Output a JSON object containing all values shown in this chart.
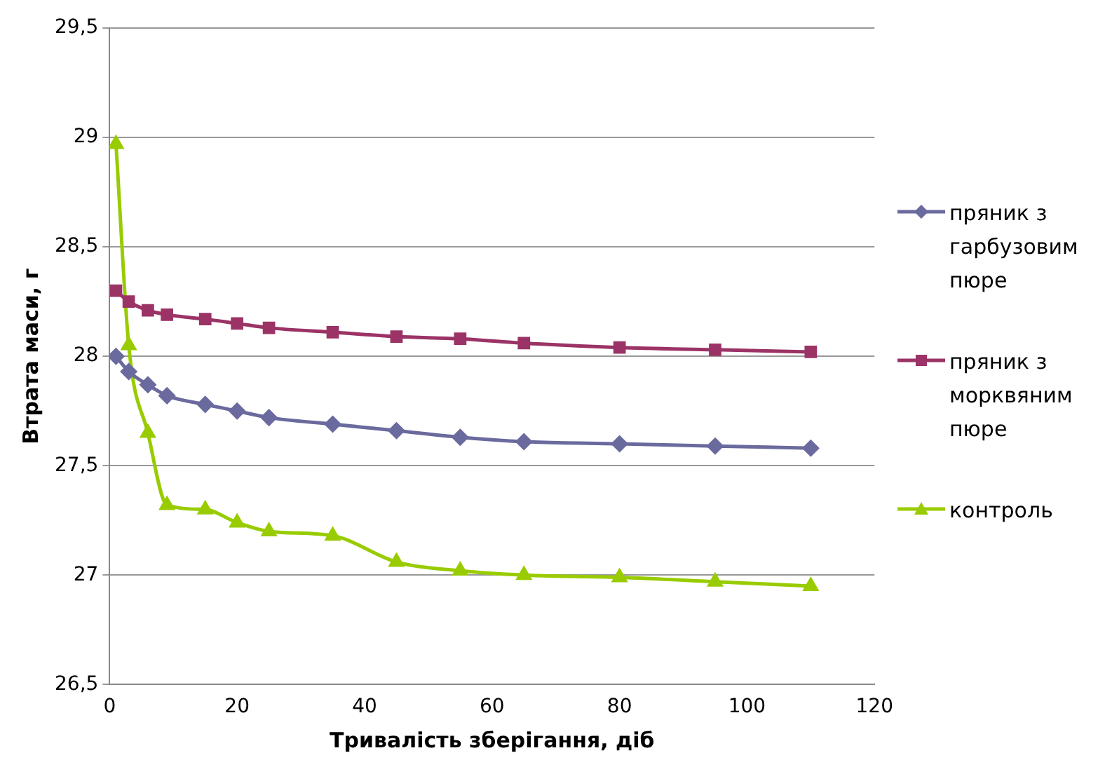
{
  "chart_data": {
    "type": "line",
    "xlabel": "Тривалість зберігання, діб",
    "ylabel": "Втрата маси, г",
    "x": [
      1,
      3,
      6,
      9,
      15,
      20,
      25,
      35,
      45,
      55,
      65,
      80,
      95,
      110
    ],
    "series": [
      {
        "name": "пряник з гарбузовим пюре",
        "color": "#6a6a9e",
        "marker": "diamond",
        "values": [
          28.0,
          27.93,
          27.87,
          27.82,
          27.78,
          27.75,
          27.72,
          27.69,
          27.66,
          27.63,
          27.61,
          27.6,
          27.59,
          27.58
        ]
      },
      {
        "name": "пряник з морквяним пюре",
        "color": "#9b3366",
        "marker": "square",
        "values": [
          28.3,
          28.25,
          28.21,
          28.19,
          28.17,
          28.15,
          28.13,
          28.11,
          28.09,
          28.08,
          28.06,
          28.04,
          28.03,
          28.02
        ]
      },
      {
        "name": "контроль",
        "color": "#99cc00",
        "marker": "triangle",
        "values": [
          28.97,
          28.05,
          27.65,
          27.32,
          27.3,
          27.24,
          27.2,
          27.18,
          27.06,
          27.02,
          27.0,
          26.99,
          26.97,
          26.95
        ]
      }
    ],
    "xlim": [
      0,
      120
    ],
    "xticks": [
      0,
      20,
      40,
      60,
      80,
      100,
      120
    ],
    "ylim": [
      26.5,
      29.5
    ],
    "yticks": [
      {
        "value": 26.5,
        "label": "26,5"
      },
      27,
      {
        "value": 27.5,
        "label": "27,5"
      },
      28,
      {
        "value": 28.5,
        "label": "28,5"
      },
      29,
      {
        "value": 29.5,
        "label": "29,5"
      }
    ],
    "grid": "y",
    "legend": "right"
  }
}
